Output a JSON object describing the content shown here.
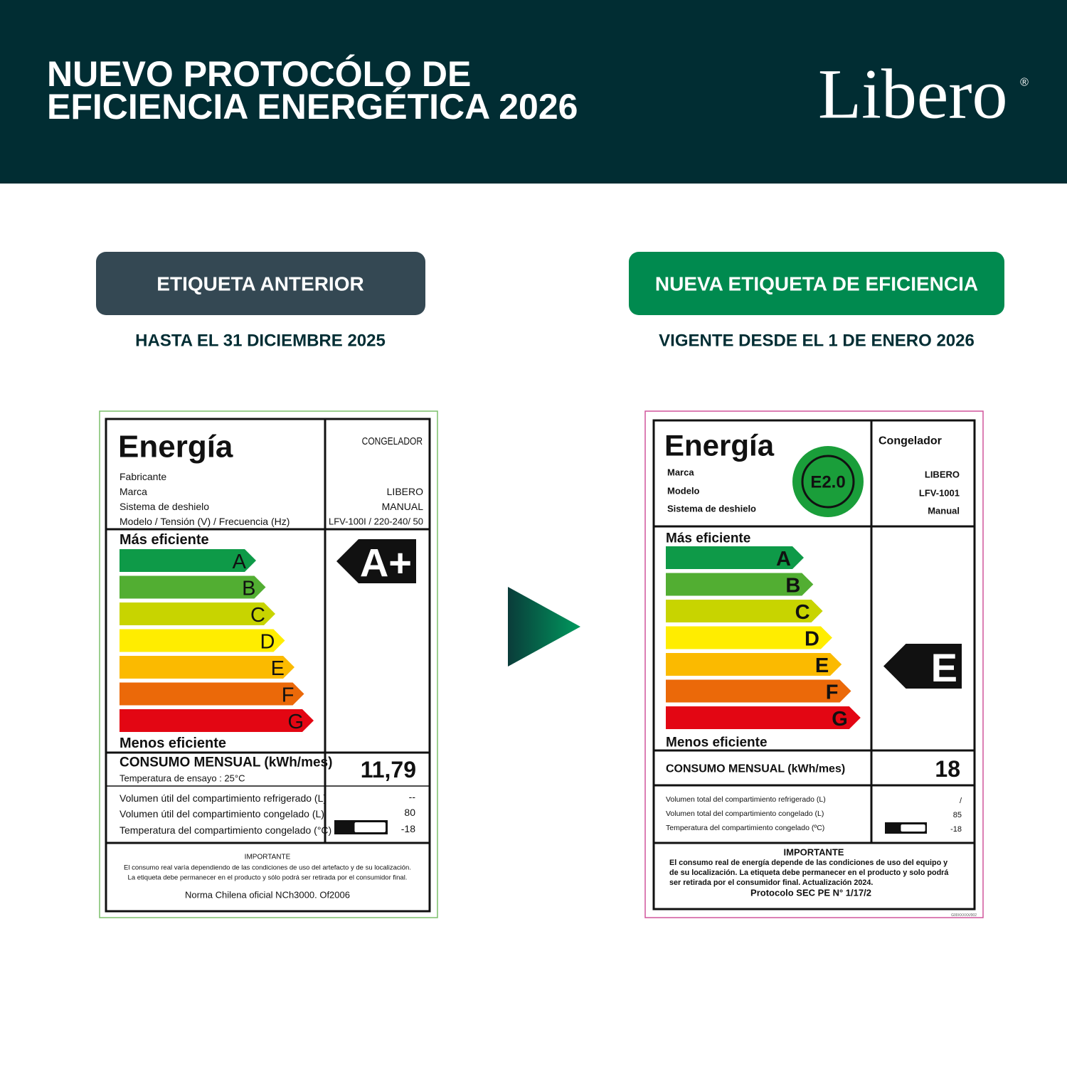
{
  "header": {
    "title_lines": [
      "NUEVO PROTOCÓLO DE",
      "EFICIENCIA ENERGÉTICA 2026"
    ],
    "logo": "Libero",
    "logo_mark": "®"
  },
  "panels": [
    {
      "badge": "ETIQUETA ANTERIOR",
      "subtitle": "HASTA EL 31 DICIEMBRE 2025",
      "label": {
        "title": "Energía",
        "product": "CONGELADOR",
        "fields": [
          {
            "label": "Fabricante"
          },
          {
            "label": "Marca",
            "value": "LIBERO"
          },
          {
            "label": "Sistema de deshielo",
            "value": "MANUAL"
          },
          {
            "label": "Modelo / Tensión (V) / Frecuencia (Hz)",
            "value": "LFV-100I / 220-240/ 50"
          }
        ],
        "most_efficient": "Más eficiente",
        "classes": [
          "A",
          "B",
          "C",
          "D",
          "E",
          "F",
          "G"
        ],
        "least_efficient": "Menos eficiente",
        "rating": "A+",
        "consumption_label": "CONSUMO MENSUAL (kWh/mes)",
        "test_temperature": "Temperatura de ensayo : 25°C",
        "consumption": "11,79",
        "volumes": [
          {
            "label": "Volumen útil del compartimiento refrigerado (L)",
            "value": "--"
          },
          {
            "label": "Volumen útil del compartimiento congelado (L)",
            "value": "80"
          },
          {
            "label": "Temperatura del compartimiento congelado (°C)",
            "value": "-18"
          }
        ],
        "important_title": "IMPORTANTE",
        "important_text": [
          "El consumo real varía dependiendo de las condiciones de uso del artefacto y de su localización.",
          "La etiqueta debe permanecer en el producto y sólo podrá ser retirada por el consumidor final."
        ],
        "norm": "Norma Chilena oficial NCh3000. Of2006"
      }
    },
    {
      "badge": "NUEVA ETIQUETA DE EFICIENCIA",
      "subtitle": "VIGENTE DESDE EL 1 DE ENERO 2026",
      "label": {
        "title": "Energía",
        "seal": "E2.0",
        "product": "Congelador",
        "fields": [
          {
            "label": "Marca",
            "value": "LIBERO"
          },
          {
            "label": "Modelo",
            "value": "LFV-1001"
          },
          {
            "label": "Sistema de deshielo",
            "value": "Manual"
          }
        ],
        "most_efficient": "Más eficiente",
        "classes": [
          "A",
          "B",
          "C",
          "D",
          "E",
          "F",
          "G"
        ],
        "least_efficient": "Menos eficiente",
        "rating": "E",
        "consumption_label": "CONSUMO MENSUAL (kWh/mes)",
        "consumption": "18",
        "volumes": [
          {
            "label": "Volumen total del compartimiento refrigerado (L)",
            "value": "/"
          },
          {
            "label": "Volumen total del compartimiento congelado (L)",
            "value": "85"
          },
          {
            "label": "Temperatura del compartimiento congelado (ºC)",
            "value": "-18"
          }
        ],
        "important_title": "IMPORTANTE",
        "important_text": [
          "El consumo real de energía depende de las condiciones de uso del equipo y",
          "de su localización. La etiqueta debe permanecer en el producto y solo podrá",
          "ser retirada por el consumidor final. Actualización 2024."
        ],
        "norm": "Protocolo SEC PE N° 1/17/2",
        "code": "G00XXXXX/002"
      }
    }
  ]
}
